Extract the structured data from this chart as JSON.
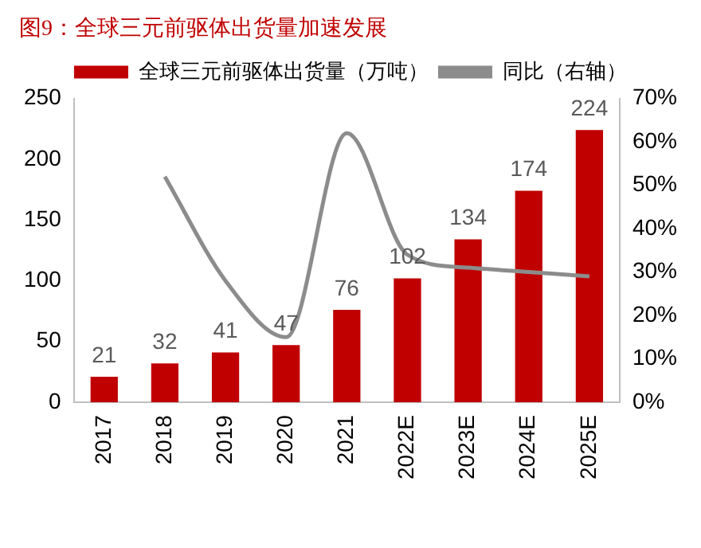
{
  "chart_data": {
    "type": "bar",
    "title": "图9：全球三元前驱体出货量加速发展",
    "categories": [
      "2017",
      "2018",
      "2019",
      "2020",
      "2021",
      "2022E",
      "2023E",
      "2024E",
      "2025E"
    ],
    "series": [
      {
        "name": "全球三元前驱体出货量（万吨）",
        "color": "#c00000",
        "values": [
          21,
          32,
          41,
          47,
          76,
          102,
          134,
          174,
          224
        ],
        "value_labels": [
          "21",
          "32",
          "41",
          "47",
          "76",
          "102",
          "134",
          "174",
          "224"
        ]
      },
      {
        "name": "同比（右轴）",
        "type": "line",
        "axis": "y2",
        "color": "#8c8c8c",
        "marker": "none",
        "values": [
          null,
          52,
          28,
          15,
          62,
          34,
          31,
          30,
          29
        ]
      }
    ],
    "ylim": [
      0,
      250
    ],
    "yticks": [
      0,
      50,
      100,
      150,
      200,
      250
    ],
    "y2lim": [
      0,
      70
    ],
    "y2ticks": [
      {
        "value": 0,
        "label": "0%"
      },
      {
        "value": 10,
        "label": "10%"
      },
      {
        "value": 20,
        "label": "20%"
      },
      {
        "value": 30,
        "label": "30%"
      },
      {
        "value": 40,
        "label": "40%"
      },
      {
        "value": 50,
        "label": "50%"
      },
      {
        "value": 60,
        "label": "60%"
      },
      {
        "value": 70,
        "label": "70%"
      }
    ],
    "grid": false,
    "legend": "top"
  }
}
